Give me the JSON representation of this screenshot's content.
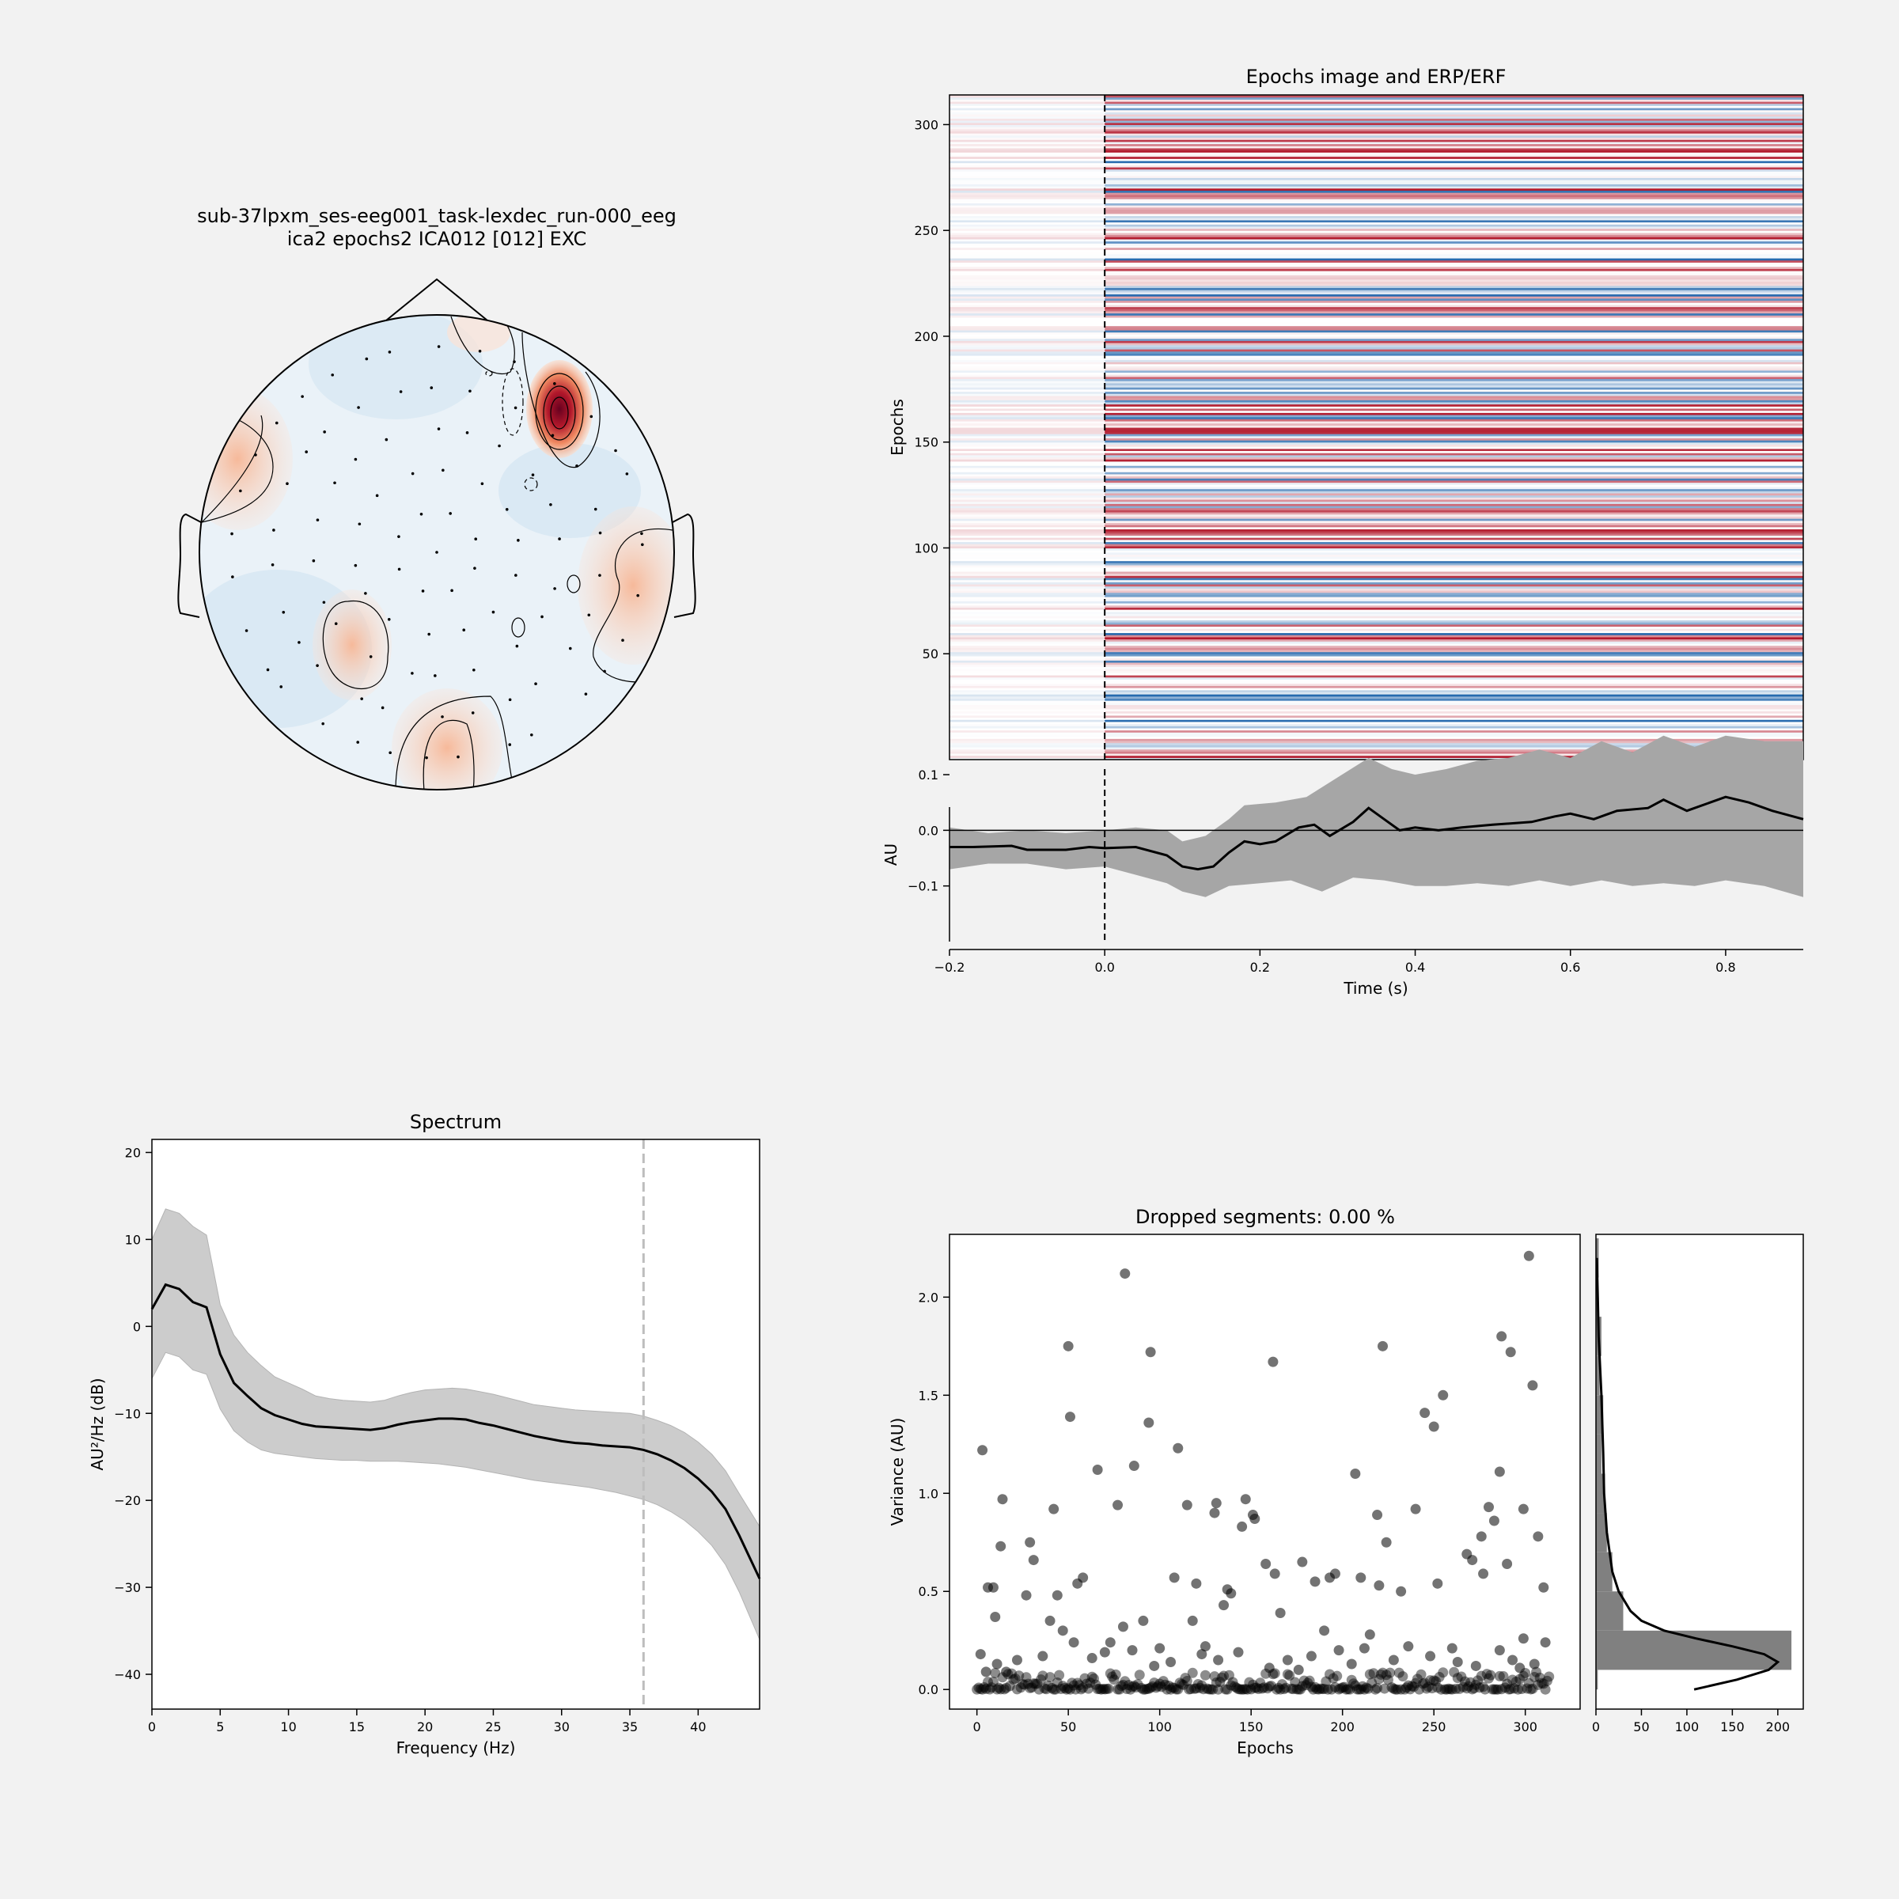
{
  "topomap": {
    "title_line1": "sub-37lpxm_ses-eeg001_task-lexdec_run-000_eeg",
    "title_line2": "ica2 epochs2 ICA012 [012] EXC"
  },
  "epochs_image": {
    "title": "Epochs image and ERP/ERF",
    "ylabel": "Epochs",
    "ylim": [
      0,
      314
    ],
    "yticks": [
      50,
      100,
      150,
      200,
      250,
      300
    ],
    "xlim": [
      -0.2,
      0.9
    ],
    "n_epochs": 314,
    "colormap": [
      "#2166ac",
      "#ffffff",
      "#b2182b"
    ]
  },
  "erp": {
    "ylabel": "AU",
    "xlabel": "Time (s)",
    "xlim": [
      -0.2,
      0.9
    ],
    "ylim": [
      -0.2,
      0.11
    ],
    "xticks": [
      "−0.2",
      "0.0",
      "0.2",
      "0.4",
      "0.6",
      "0.8"
    ],
    "yticks": [
      "0.1",
      "0.0",
      "−0.1"
    ],
    "mean": [
      [
        -0.2,
        -0.03
      ],
      [
        -0.17,
        -0.03
      ],
      [
        -0.12,
        -0.028
      ],
      [
        -0.1,
        -0.035
      ],
      [
        -0.05,
        -0.035
      ],
      [
        -0.02,
        -0.03
      ],
      [
        0.0,
        -0.032
      ],
      [
        0.04,
        -0.03
      ],
      [
        0.08,
        -0.045
      ],
      [
        0.1,
        -0.065
      ],
      [
        0.12,
        -0.07
      ],
      [
        0.14,
        -0.065
      ],
      [
        0.16,
        -0.04
      ],
      [
        0.18,
        -0.02
      ],
      [
        0.2,
        -0.025
      ],
      [
        0.22,
        -0.02
      ],
      [
        0.25,
        0.005
      ],
      [
        0.27,
        0.01
      ],
      [
        0.29,
        -0.01
      ],
      [
        0.32,
        0.015
      ],
      [
        0.34,
        0.04
      ],
      [
        0.36,
        0.02
      ],
      [
        0.38,
        0.0
      ],
      [
        0.4,
        0.005
      ],
      [
        0.43,
        0.0
      ],
      [
        0.46,
        0.005
      ],
      [
        0.5,
        0.01
      ],
      [
        0.55,
        0.015
      ],
      [
        0.58,
        0.025
      ],
      [
        0.6,
        0.03
      ],
      [
        0.63,
        0.02
      ],
      [
        0.66,
        0.035
      ],
      [
        0.7,
        0.04
      ],
      [
        0.72,
        0.055
      ],
      [
        0.75,
        0.035
      ],
      [
        0.78,
        0.05
      ],
      [
        0.8,
        0.06
      ],
      [
        0.83,
        0.05
      ],
      [
        0.86,
        0.035
      ],
      [
        0.9,
        0.02
      ]
    ],
    "upper": [
      [
        -0.2,
        0.005
      ],
      [
        -0.15,
        -0.005
      ],
      [
        -0.1,
        0.0
      ],
      [
        -0.05,
        -0.005
      ],
      [
        0.0,
        0.0
      ],
      [
        0.04,
        0.005
      ],
      [
        0.08,
        0.0
      ],
      [
        0.1,
        -0.02
      ],
      [
        0.13,
        -0.01
      ],
      [
        0.16,
        0.02
      ],
      [
        0.18,
        0.045
      ],
      [
        0.22,
        0.05
      ],
      [
        0.26,
        0.06
      ],
      [
        0.3,
        0.095
      ],
      [
        0.34,
        0.13
      ],
      [
        0.37,
        0.11
      ],
      [
        0.4,
        0.1
      ],
      [
        0.44,
        0.11
      ],
      [
        0.48,
        0.125
      ],
      [
        0.52,
        0.13
      ],
      [
        0.56,
        0.145
      ],
      [
        0.6,
        0.13
      ],
      [
        0.64,
        0.16
      ],
      [
        0.68,
        0.14
      ],
      [
        0.72,
        0.17
      ],
      [
        0.76,
        0.15
      ],
      [
        0.8,
        0.17
      ],
      [
        0.85,
        0.16
      ],
      [
        0.9,
        0.16
      ]
    ],
    "lower": [
      [
        -0.2,
        -0.07
      ],
      [
        -0.15,
        -0.06
      ],
      [
        -0.1,
        -0.06
      ],
      [
        -0.05,
        -0.07
      ],
      [
        0.0,
        -0.065
      ],
      [
        0.04,
        -0.08
      ],
      [
        0.08,
        -0.095
      ],
      [
        0.1,
        -0.11
      ],
      [
        0.13,
        -0.12
      ],
      [
        0.16,
        -0.1
      ],
      [
        0.2,
        -0.095
      ],
      [
        0.24,
        -0.09
      ],
      [
        0.28,
        -0.11
      ],
      [
        0.32,
        -0.085
      ],
      [
        0.36,
        -0.09
      ],
      [
        0.4,
        -0.1
      ],
      [
        0.44,
        -0.1
      ],
      [
        0.48,
        -0.095
      ],
      [
        0.52,
        -0.1
      ],
      [
        0.56,
        -0.09
      ],
      [
        0.6,
        -0.1
      ],
      [
        0.64,
        -0.09
      ],
      [
        0.68,
        -0.1
      ],
      [
        0.72,
        -0.095
      ],
      [
        0.76,
        -0.1
      ],
      [
        0.8,
        -0.09
      ],
      [
        0.85,
        -0.1
      ],
      [
        0.9,
        -0.12
      ]
    ]
  },
  "spectrum": {
    "title": "Spectrum",
    "xlabel": "Frequency (Hz)",
    "ylabel": "AU²/Hz (dB)",
    "xlim": [
      0,
      44.5
    ],
    "ylim": [
      -44,
      21.5
    ],
    "xticks": [
      0,
      5,
      10,
      15,
      20,
      25,
      30,
      35,
      40
    ],
    "yticks": [
      "20",
      "10",
      "0",
      "−10",
      "−20",
      "−30",
      "−40"
    ],
    "cutoff": 36,
    "freqs": [
      0,
      1,
      2,
      3,
      4,
      5,
      6,
      7,
      8,
      9,
      10,
      11,
      12,
      13,
      14,
      15,
      16,
      17,
      18,
      19,
      20,
      21,
      22,
      23,
      24,
      25,
      26,
      27,
      28,
      29,
      30,
      31,
      32,
      33,
      34,
      35,
      36,
      37,
      38,
      39,
      40,
      41,
      42,
      43,
      44.5
    ],
    "mean": [
      2,
      4.8,
      4.3,
      2.8,
      2.2,
      -3.2,
      -6.5,
      -8,
      -9.4,
      -10.2,
      -10.7,
      -11.2,
      -11.5,
      -11.6,
      -11.7,
      -11.8,
      -11.9,
      -11.7,
      -11.3,
      -11,
      -10.8,
      -10.6,
      -10.6,
      -10.7,
      -11.1,
      -11.4,
      -11.8,
      -12.2,
      -12.6,
      -12.9,
      -13.2,
      -13.4,
      -13.5,
      -13.7,
      -13.8,
      -13.9,
      -14.2,
      -14.7,
      -15.4,
      -16.3,
      -17.5,
      -19,
      -21,
      -24,
      -29
    ],
    "upper": [
      10,
      13.5,
      13,
      11.5,
      10.5,
      2.5,
      -1,
      -3,
      -4.5,
      -5.8,
      -6.5,
      -7.2,
      -8,
      -8.3,
      -8.5,
      -8.6,
      -8.7,
      -8.5,
      -8,
      -7.6,
      -7.3,
      -7.2,
      -7.1,
      -7.2,
      -7.5,
      -7.8,
      -8.2,
      -8.6,
      -9,
      -9.2,
      -9.4,
      -9.6,
      -9.7,
      -9.8,
      -9.9,
      -10,
      -10.3,
      -10.8,
      -11.4,
      -12.2,
      -13.3,
      -14.7,
      -16.6,
      -19.2,
      -23
    ],
    "lower": [
      -6,
      -3,
      -3.5,
      -5,
      -5.5,
      -9.5,
      -12,
      -13.3,
      -14.2,
      -14.6,
      -14.8,
      -15,
      -15.2,
      -15.3,
      -15.4,
      -15.4,
      -15.5,
      -15.5,
      -15.5,
      -15.6,
      -15.7,
      -15.8,
      -16,
      -16.2,
      -16.5,
      -16.8,
      -17.1,
      -17.4,
      -17.7,
      -17.9,
      -18.1,
      -18.3,
      -18.5,
      -18.8,
      -19.1,
      -19.5,
      -19.9,
      -20.5,
      -21.3,
      -22.3,
      -23.6,
      -25.2,
      -27.4,
      -30.5,
      -36
    ]
  },
  "variance": {
    "title": "Dropped segments: 0.00 %",
    "xlabel": "Epochs",
    "ylabel": "Variance (AU)",
    "xlim": [
      -15,
      330
    ],
    "ylim": [
      -0.1,
      2.32
    ],
    "xticks": [
      0,
      50,
      100,
      150,
      200,
      250,
      300
    ],
    "yticks": [
      "0.0",
      "0.5",
      "1.0",
      "1.5",
      "2.0"
    ],
    "outliers": [
      [
        3,
        1.22
      ],
      [
        14,
        0.97
      ],
      [
        13,
        0.73
      ],
      [
        6,
        0.52
      ],
      [
        9,
        0.52
      ],
      [
        2,
        0.18
      ],
      [
        10,
        0.37
      ],
      [
        11,
        0.13
      ],
      [
        27,
        0.48
      ],
      [
        29,
        0.75
      ],
      [
        31,
        0.66
      ],
      [
        42,
        0.92
      ],
      [
        44,
        0.48
      ],
      [
        50,
        1.75
      ],
      [
        51,
        1.39
      ],
      [
        55,
        0.54
      ],
      [
        58,
        0.57
      ],
      [
        40,
        0.35
      ],
      [
        47,
        0.3
      ],
      [
        53,
        0.24
      ],
      [
        66,
        1.12
      ],
      [
        70,
        0.19
      ],
      [
        77,
        0.94
      ],
      [
        80,
        0.32
      ],
      [
        81,
        2.12
      ],
      [
        86,
        1.14
      ],
      [
        91,
        0.35
      ],
      [
        95,
        1.72
      ],
      [
        94,
        1.36
      ],
      [
        100,
        0.21
      ],
      [
        108,
        0.57
      ],
      [
        110,
        1.23
      ],
      [
        115,
        0.94
      ],
      [
        118,
        0.35
      ],
      [
        120,
        0.54
      ],
      [
        125,
        0.22
      ],
      [
        130,
        0.9
      ],
      [
        131,
        0.95
      ],
      [
        135,
        0.43
      ],
      [
        137,
        0.51
      ],
      [
        139,
        0.49
      ],
      [
        145,
        0.83
      ],
      [
        147,
        0.97
      ],
      [
        151,
        0.89
      ],
      [
        152,
        0.87
      ],
      [
        158,
        0.64
      ],
      [
        162,
        1.67
      ],
      [
        163,
        0.59
      ],
      [
        166,
        0.39
      ],
      [
        170,
        0.15
      ],
      [
        178,
        0.65
      ],
      [
        185,
        0.55
      ],
      [
        190,
        0.3
      ],
      [
        193,
        0.57
      ],
      [
        196,
        0.59
      ],
      [
        207,
        1.1
      ],
      [
        210,
        0.57
      ],
      [
        215,
        0.28
      ],
      [
        219,
        0.89
      ],
      [
        220,
        0.53
      ],
      [
        222,
        1.75
      ],
      [
        224,
        0.75
      ],
      [
        232,
        0.5
      ],
      [
        240,
        0.92
      ],
      [
        245,
        1.41
      ],
      [
        250,
        1.34
      ],
      [
        252,
        0.54
      ],
      [
        255,
        1.5
      ],
      [
        268,
        0.69
      ],
      [
        271,
        0.66
      ],
      [
        276,
        0.78
      ],
      [
        277,
        0.59
      ],
      [
        280,
        0.93
      ],
      [
        283,
        0.86
      ],
      [
        286,
        1.11
      ],
      [
        287,
        1.8
      ],
      [
        290,
        0.64
      ],
      [
        292,
        1.72
      ],
      [
        299,
        0.92
      ],
      [
        302,
        2.21
      ],
      [
        304,
        1.55
      ],
      [
        307,
        0.78
      ],
      [
        310,
        0.52
      ],
      [
        311,
        0.24
      ],
      [
        299,
        0.26
      ],
      [
        293,
        0.15
      ],
      [
        286,
        0.2
      ],
      [
        260,
        0.21
      ],
      [
        248,
        0.17
      ],
      [
        236,
        0.22
      ],
      [
        228,
        0.15
      ],
      [
        212,
        0.21
      ],
      [
        205,
        0.13
      ],
      [
        198,
        0.2
      ],
      [
        183,
        0.17
      ],
      [
        176,
        0.1
      ],
      [
        160,
        0.11
      ],
      [
        143,
        0.19
      ],
      [
        132,
        0.15
      ],
      [
        123,
        0.18
      ],
      [
        106,
        0.14
      ],
      [
        97,
        0.12
      ],
      [
        85,
        0.2
      ],
      [
        73,
        0.24
      ],
      [
        63,
        0.16
      ],
      [
        36,
        0.17
      ],
      [
        22,
        0.15
      ],
      [
        16,
        0.09
      ],
      [
        5,
        0.09
      ],
      [
        305,
        0.13
      ],
      [
        297,
        0.11
      ],
      [
        273,
        0.12
      ],
      [
        263,
        0.14
      ]
    ],
    "hist_xlim": [
      0,
      228
    ],
    "hist_xticks": [
      0,
      50,
      100,
      150,
      200
    ],
    "hist": [
      [
        0.0,
        0.1,
        2
      ],
      [
        0.1,
        0.3,
        215
      ],
      [
        0.3,
        0.5,
        30
      ],
      [
        0.5,
        0.7,
        18
      ],
      [
        0.7,
        0.9,
        12
      ],
      [
        0.9,
        1.1,
        10
      ],
      [
        1.1,
        1.3,
        6
      ],
      [
        1.3,
        1.5,
        8
      ],
      [
        1.5,
        1.7,
        4
      ],
      [
        1.7,
        1.9,
        6
      ],
      [
        1.9,
        2.1,
        2
      ],
      [
        2.1,
        2.3,
        3
      ]
    ],
    "kde": [
      [
        0.0,
        108
      ],
      [
        0.05,
        155
      ],
      [
        0.1,
        190
      ],
      [
        0.14,
        200
      ],
      [
        0.18,
        185
      ],
      [
        0.22,
        150
      ],
      [
        0.26,
        110
      ],
      [
        0.3,
        75
      ],
      [
        0.35,
        50
      ],
      [
        0.4,
        38
      ],
      [
        0.5,
        25
      ],
      [
        0.6,
        18
      ],
      [
        0.8,
        12
      ],
      [
        1.0,
        9
      ],
      [
        1.2,
        8
      ],
      [
        1.5,
        6
      ],
      [
        1.8,
        3
      ],
      [
        2.0,
        2
      ],
      [
        2.2,
        1
      ]
    ]
  }
}
